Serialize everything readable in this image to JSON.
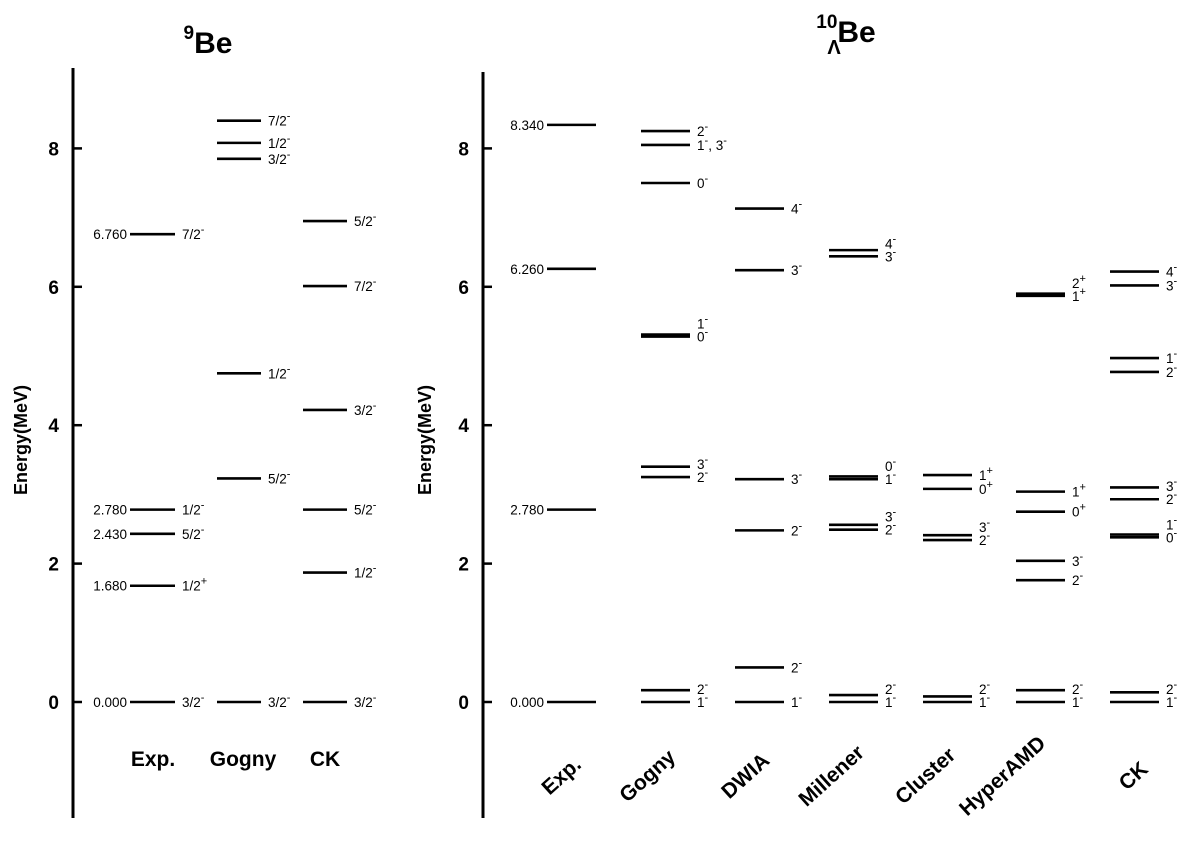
{
  "chart_data": [
    {
      "type": "level-scheme",
      "title": "Be",
      "title_mass": "9",
      "ylabel": "Energy(MeV)",
      "ylim": [
        -1.7,
        9.2
      ],
      "yticks": [
        0,
        2,
        4,
        6,
        8
      ],
      "columns": [
        "Exp.",
        "Gogny",
        "CK"
      ],
      "levels": [
        {
          "column": "Exp.",
          "energy": 0.0,
          "label": "3/2-",
          "value_label": "0.000"
        },
        {
          "column": "Exp.",
          "energy": 1.68,
          "label": "1/2+",
          "value_label": "1.680"
        },
        {
          "column": "Exp.",
          "energy": 2.43,
          "label": "5/2-",
          "value_label": "2.430"
        },
        {
          "column": "Exp.",
          "energy": 2.78,
          "label": "1/2-",
          "value_label": "2.780"
        },
        {
          "column": "Exp.",
          "energy": 6.76,
          "label": "7/2-",
          "value_label": "6.760"
        },
        {
          "column": "Gogny",
          "energy": 0.0,
          "label": "3/2-"
        },
        {
          "column": "Gogny",
          "energy": 3.23,
          "label": "5/2-"
        },
        {
          "column": "Gogny",
          "energy": 4.75,
          "label": "1/2-"
        },
        {
          "column": "Gogny",
          "energy": 7.85,
          "label": "3/2-"
        },
        {
          "column": "Gogny",
          "energy": 8.08,
          "label": "1/2-"
        },
        {
          "column": "Gogny",
          "energy": 8.4,
          "label": "7/2-"
        },
        {
          "column": "CK",
          "energy": 0.0,
          "label": "3/2-"
        },
        {
          "column": "CK",
          "energy": 1.87,
          "label": "1/2-"
        },
        {
          "column": "CK",
          "energy": 2.78,
          "label": "5/2-"
        },
        {
          "column": "CK",
          "energy": 4.22,
          "label": "3/2-"
        },
        {
          "column": "CK",
          "energy": 6.01,
          "label": "7/2-"
        },
        {
          "column": "CK",
          "energy": 6.95,
          "label": "5/2-"
        }
      ]
    },
    {
      "type": "level-scheme",
      "title": "Be",
      "title_mass": "10",
      "title_sub": "Λ",
      "ylabel": "Energy(MeV)",
      "ylim": [
        -1.7,
        9.2
      ],
      "yticks": [
        0,
        2,
        4,
        6,
        8
      ],
      "columns": [
        "Exp.",
        "Gogny",
        "DWIA",
        "Millener",
        "Cluster",
        "HyperAMD",
        "CK"
      ],
      "levels": [
        {
          "column": "Exp.",
          "energy": 0.0,
          "value_label": "0.000"
        },
        {
          "column": "Exp.",
          "energy": 2.78,
          "value_label": "2.780"
        },
        {
          "column": "Exp.",
          "energy": 6.26,
          "value_label": "6.260"
        },
        {
          "column": "Exp.",
          "energy": 8.34,
          "value_label": "8.340"
        },
        {
          "column": "Gogny",
          "energy": 0.0,
          "label": "1-"
        },
        {
          "column": "Gogny",
          "energy": 0.17,
          "label": "2-"
        },
        {
          "column": "Gogny",
          "energy": 3.25,
          "label": "2-"
        },
        {
          "column": "Gogny",
          "energy": 3.4,
          "label": "3-"
        },
        {
          "column": "Gogny",
          "energy": 5.28,
          "label": "0-"
        },
        {
          "column": "Gogny",
          "energy": 5.31,
          "label": "1-"
        },
        {
          "column": "Gogny",
          "energy": 7.5,
          "label": "0-"
        },
        {
          "column": "Gogny",
          "energy": 8.05,
          "label": "1-, 3-"
        },
        {
          "column": "Gogny",
          "energy": 8.25,
          "label": "2-"
        },
        {
          "column": "DWIA",
          "energy": 0.0,
          "label": "1-"
        },
        {
          "column": "DWIA",
          "energy": 0.5,
          "label": "2-"
        },
        {
          "column": "DWIA",
          "energy": 2.48,
          "label": "2-"
        },
        {
          "column": "DWIA",
          "energy": 3.22,
          "label": "3-"
        },
        {
          "column": "DWIA",
          "energy": 6.24,
          "label": "3-"
        },
        {
          "column": "DWIA",
          "energy": 7.13,
          "label": "4-"
        },
        {
          "column": "Millener",
          "energy": 0.0,
          "label": "1-"
        },
        {
          "column": "Millener",
          "energy": 0.1,
          "label": "2-"
        },
        {
          "column": "Millener",
          "energy": 2.49,
          "label": "2-"
        },
        {
          "column": "Millener",
          "energy": 2.56,
          "label": "3-"
        },
        {
          "column": "Millener",
          "energy": 3.22,
          "label": "1-"
        },
        {
          "column": "Millener",
          "energy": 3.26,
          "label": "0-"
        },
        {
          "column": "Millener",
          "energy": 6.44,
          "label": "3-"
        },
        {
          "column": "Millener",
          "energy": 6.53,
          "label": "4-"
        },
        {
          "column": "Cluster",
          "energy": 0.0,
          "label": "1-"
        },
        {
          "column": "Cluster",
          "energy": 0.08,
          "label": "2-"
        },
        {
          "column": "Cluster",
          "energy": 2.34,
          "label": "2-"
        },
        {
          "column": "Cluster",
          "energy": 2.41,
          "label": "3-"
        },
        {
          "column": "Cluster",
          "energy": 3.08,
          "label": "0+"
        },
        {
          "column": "Cluster",
          "energy": 3.28,
          "label": "1+"
        },
        {
          "column": "HyperAMD",
          "energy": 0.0,
          "label": "1-"
        },
        {
          "column": "HyperAMD",
          "energy": 0.17,
          "label": "2-"
        },
        {
          "column": "HyperAMD",
          "energy": 1.76,
          "label": "2-"
        },
        {
          "column": "HyperAMD",
          "energy": 2.04,
          "label": "3-"
        },
        {
          "column": "HyperAMD",
          "energy": 2.75,
          "label": "0+"
        },
        {
          "column": "HyperAMD",
          "energy": 3.04,
          "label": "1+"
        },
        {
          "column": "HyperAMD",
          "energy": 5.87,
          "label": "1+"
        },
        {
          "column": "HyperAMD",
          "energy": 5.9,
          "label": "2+"
        },
        {
          "column": "CK",
          "energy": 0.0,
          "label": "1-"
        },
        {
          "column": "CK",
          "energy": 0.14,
          "label": "2-"
        },
        {
          "column": "CK",
          "energy": 2.38,
          "label": "0-"
        },
        {
          "column": "CK",
          "energy": 2.42,
          "label": "1-"
        },
        {
          "column": "CK",
          "energy": 2.93,
          "label": "2-"
        },
        {
          "column": "CK",
          "energy": 3.1,
          "label": "3-"
        },
        {
          "column": "CK",
          "energy": 4.77,
          "label": "2-"
        },
        {
          "column": "CK",
          "energy": 4.97,
          "label": "1-"
        },
        {
          "column": "CK",
          "energy": 6.02,
          "label": "3-"
        },
        {
          "column": "CK",
          "energy": 6.22,
          "label": "4-"
        }
      ]
    }
  ]
}
